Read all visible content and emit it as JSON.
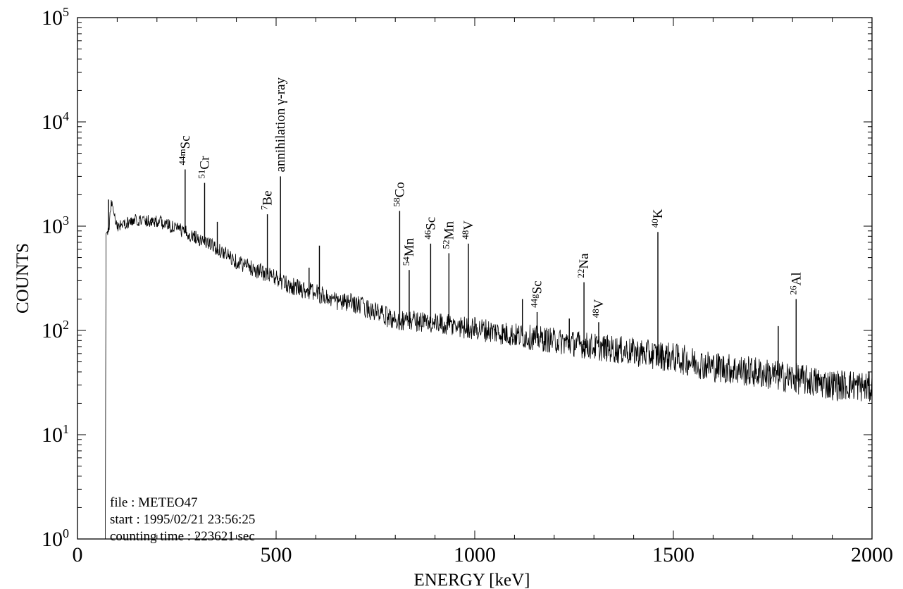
{
  "chart_data": {
    "type": "line",
    "title": "",
    "xlabel": "ENERGY [keV]",
    "ylabel": "COUNTS",
    "xlim": [
      0,
      2000
    ],
    "ylim": [
      1,
      100000
    ],
    "yscale": "log",
    "grid": false,
    "x_ticks": [
      "0",
      "500",
      "1000",
      "1500",
      "2000"
    ],
    "y_ticks": [
      {
        "base": "10",
        "exp": "0"
      },
      {
        "base": "10",
        "exp": "1"
      },
      {
        "base": "10",
        "exp": "2"
      },
      {
        "base": "10",
        "exp": "3"
      },
      {
        "base": "10",
        "exp": "4"
      },
      {
        "base": "10",
        "exp": "5"
      }
    ],
    "annotations": [
      {
        "mass": "44m",
        "element": "Sc",
        "energy": 271,
        "counts": 3500
      },
      {
        "mass": "51",
        "element": "Cr",
        "energy": 320,
        "counts": 2600
      },
      {
        "mass": "7",
        "element": "Be",
        "energy": 478,
        "counts": 1300
      },
      {
        "mass": "",
        "element": "annihilation γ-ray",
        "energy": 511,
        "counts": 3000
      },
      {
        "mass": "58",
        "element": "Co",
        "energy": 811,
        "counts": 1400
      },
      {
        "mass": "54",
        "element": "Mn",
        "energy": 835,
        "counts": 380
      },
      {
        "mass": "46",
        "element": "Sc",
        "energy": 889,
        "counts": 680
      },
      {
        "mass": "52",
        "element": "Mn",
        "energy": 935,
        "counts": 550
      },
      {
        "mass": "48",
        "element": "V",
        "energy": 984,
        "counts": 680
      },
      {
        "mass": "44g",
        "element": "Sc",
        "energy": 1157,
        "counts": 150
      },
      {
        "mass": "22",
        "element": "Na",
        "energy": 1275,
        "counts": 290
      },
      {
        "mass": "48",
        "element": "V",
        "energy": 1312,
        "counts": 120
      },
      {
        "mass": "40",
        "element": "K",
        "energy": 1461,
        "counts": 880
      },
      {
        "mass": "26",
        "element": "Al",
        "energy": 1809,
        "counts": 200
      }
    ],
    "series": [
      {
        "x": [
          15,
          70,
          72,
          80,
          85,
          100,
          150,
          200,
          250,
          300,
          350,
          400,
          450,
          500,
          520,
          550,
          600,
          650,
          700,
          750,
          800,
          850,
          900,
          950,
          1000,
          1100,
          1200,
          1300,
          1400,
          1500,
          1600,
          1700,
          1800,
          1900,
          1950,
          2000
        ],
        "y": [
          1,
          1,
          850,
          950,
          1800,
          1000,
          1150,
          1120,
          950,
          780,
          620,
          460,
          380,
          320,
          280,
          260,
          230,
          190,
          180,
          150,
          125,
          125,
          115,
          110,
          105,
          90,
          80,
          70,
          62,
          55,
          45,
          40,
          35,
          30,
          30,
          28
        ]
      }
    ],
    "peaks": [
      {
        "energy": 78,
        "counts": 1800
      },
      {
        "energy": 186,
        "counts": 1200
      },
      {
        "energy": 239,
        "counts": 1000
      },
      {
        "energy": 271,
        "counts": 3500
      },
      {
        "energy": 295,
        "counts": 900
      },
      {
        "energy": 320,
        "counts": 2600
      },
      {
        "energy": 352,
        "counts": 1100
      },
      {
        "energy": 478,
        "counts": 1300
      },
      {
        "energy": 511,
        "counts": 3000
      },
      {
        "energy": 583,
        "counts": 400
      },
      {
        "energy": 609,
        "counts": 650
      },
      {
        "energy": 811,
        "counts": 1400
      },
      {
        "energy": 835,
        "counts": 380
      },
      {
        "energy": 889,
        "counts": 680
      },
      {
        "energy": 935,
        "counts": 550
      },
      {
        "energy": 984,
        "counts": 680
      },
      {
        "energy": 1120,
        "counts": 200
      },
      {
        "energy": 1157,
        "counts": 150
      },
      {
        "energy": 1238,
        "counts": 130
      },
      {
        "energy": 1275,
        "counts": 290
      },
      {
        "energy": 1312,
        "counts": 120
      },
      {
        "energy": 1461,
        "counts": 880
      },
      {
        "energy": 1764,
        "counts": 110
      },
      {
        "energy": 1809,
        "counts": 200
      }
    ]
  },
  "info": {
    "file": "file : METEO47",
    "start": "start : 1995/02/21 23:56:25",
    "counting_time": "counting time : 223621 sec"
  }
}
